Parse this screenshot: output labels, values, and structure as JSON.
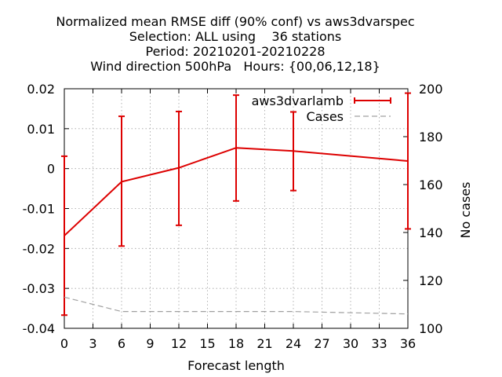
{
  "chart_data": {
    "type": "line",
    "title_lines": [
      "Normalized mean RMSE diff (90% conf) vs aws3dvarspec",
      "Selection: ALL using    36 stations",
      "Period: 20210201-20210228",
      "Wind direction 500hPa   Hours: {00,06,12,18}"
    ],
    "xlabel": "Forecast length",
    "ylabel": "",
    "y2label": "No cases",
    "xlim": [
      0,
      36
    ],
    "ylim": [
      -0.04,
      0.02
    ],
    "y2lim": [
      100,
      200
    ],
    "xticks": [
      0,
      3,
      6,
      9,
      12,
      15,
      18,
      21,
      24,
      27,
      30,
      33,
      36
    ],
    "yticks": [
      -0.04,
      -0.03,
      -0.02,
      -0.01,
      0,
      0.01,
      0.02
    ],
    "ytick_labels": [
      "-0.04",
      "-0.03",
      "-0.02",
      "-0.01",
      "0",
      "0.01",
      "0.02"
    ],
    "y2ticks": [
      100,
      120,
      140,
      160,
      180,
      200
    ],
    "grid": true,
    "legend_position": "top-right",
    "series": [
      {
        "name": "aws3dvarlamb",
        "axis": "y",
        "color": "#dd0000",
        "x": [
          0,
          6,
          12,
          18,
          24,
          36
        ],
        "values": [
          -0.0168,
          -0.0033,
          0.0002,
          0.0052,
          0.0044,
          0.0019
        ],
        "error_low": [
          -0.0367,
          -0.0194,
          -0.0142,
          -0.0081,
          -0.0055,
          -0.0151
        ],
        "error_high": [
          0.0031,
          0.0131,
          0.0143,
          0.0184,
          0.0142,
          0.0189
        ]
      },
      {
        "name": "Cases",
        "axis": "y2",
        "color": "#a0a0a0",
        "x": [
          0,
          6,
          12,
          18,
          24,
          30,
          36
        ],
        "values": [
          113,
          107,
          107,
          107,
          107,
          106.5,
          106
        ]
      }
    ]
  }
}
